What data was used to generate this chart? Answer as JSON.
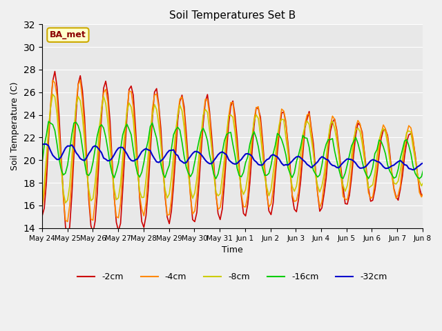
{
  "title": "Soil Temperatures Set B",
  "xlabel": "Time",
  "ylabel": "Soil Temperature (C)",
  "ylim": [
    14,
    32
  ],
  "yticks": [
    14,
    16,
    18,
    20,
    22,
    24,
    26,
    28,
    30,
    32
  ],
  "annotation": "BA_met",
  "fig_facecolor": "#f0f0f0",
  "axes_bg_color": "#e8e8e8",
  "line_colors": {
    "-2cm": "#cc0000",
    "-4cm": "#ff8800",
    "-8cm": "#cccc00",
    "-16cm": "#00cc00",
    "-32cm": "#0000cc"
  },
  "x_labels": [
    "May 24",
    "May 25",
    "May 26",
    "May 27",
    "May 28",
    "May 29",
    "May 30",
    "May 31",
    "Jun 1",
    "Jun 2",
    "Jun 3",
    "Jun 4",
    "Jun 5",
    "Jun 6",
    "Jun 7",
    "Jun 8"
  ],
  "depth_labels": [
    "-2cm",
    "-4cm",
    "-8cm",
    "-16cm",
    "-32cm"
  ]
}
